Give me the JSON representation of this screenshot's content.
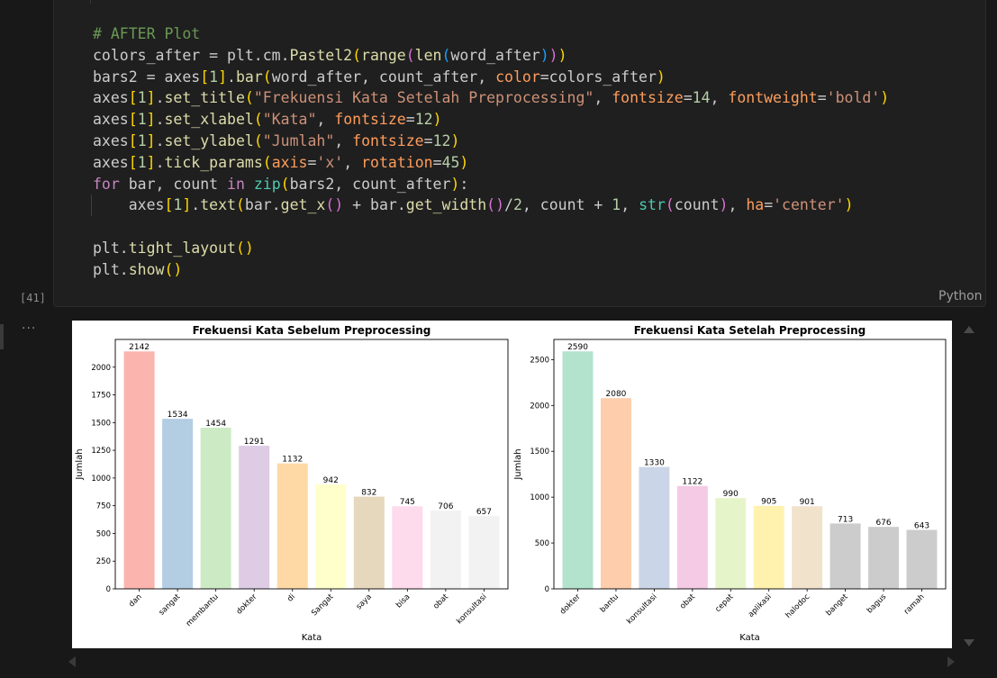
{
  "cell": {
    "code_lines": [
      [
        [
          "t-com",
          "# AFTER Plot"
        ]
      ],
      [
        [
          "t-def",
          "colors_after = plt.cm."
        ],
        [
          "t-fn",
          "Pastel2"
        ],
        [
          "t-b1",
          "("
        ],
        [
          "t-fn",
          "range"
        ],
        [
          "t-b2",
          "("
        ],
        [
          "t-fn",
          "len"
        ],
        [
          "t-b3",
          "("
        ],
        [
          "t-def",
          "word_after"
        ],
        [
          "t-b3",
          ")"
        ],
        [
          "t-b2",
          ")"
        ],
        [
          "t-b1",
          ")"
        ]
      ],
      [
        [
          "t-def",
          "bars2 = axes"
        ],
        [
          "t-b1",
          "["
        ],
        [
          "t-num",
          "1"
        ],
        [
          "t-b1",
          "]"
        ],
        [
          "t-def",
          "."
        ],
        [
          "t-fn",
          "bar"
        ],
        [
          "t-b1",
          "("
        ],
        [
          "t-def",
          "word_after, count_after, "
        ],
        [
          "t-kwa",
          "color"
        ],
        [
          "t-def",
          "=colors_after"
        ],
        [
          "t-b1",
          ")"
        ]
      ],
      [
        [
          "t-def",
          "axes"
        ],
        [
          "t-b1",
          "["
        ],
        [
          "t-num",
          "1"
        ],
        [
          "t-b1",
          "]"
        ],
        [
          "t-def",
          "."
        ],
        [
          "t-fn",
          "set_title"
        ],
        [
          "t-b1",
          "("
        ],
        [
          "t-str",
          "\"Frekuensi Kata Setelah Preprocessing\""
        ],
        [
          "t-def",
          ", "
        ],
        [
          "t-kwa",
          "fontsize"
        ],
        [
          "t-def",
          "="
        ],
        [
          "t-num",
          "14"
        ],
        [
          "t-def",
          ", "
        ],
        [
          "t-kwa",
          "fontweight"
        ],
        [
          "t-def",
          "="
        ],
        [
          "t-str",
          "'bold'"
        ],
        [
          "t-b1",
          ")"
        ]
      ],
      [
        [
          "t-def",
          "axes"
        ],
        [
          "t-b1",
          "["
        ],
        [
          "t-num",
          "1"
        ],
        [
          "t-b1",
          "]"
        ],
        [
          "t-def",
          "."
        ],
        [
          "t-fn",
          "set_xlabel"
        ],
        [
          "t-b1",
          "("
        ],
        [
          "t-str",
          "\"Kata\""
        ],
        [
          "t-def",
          ", "
        ],
        [
          "t-kwa",
          "fontsize"
        ],
        [
          "t-def",
          "="
        ],
        [
          "t-num",
          "12"
        ],
        [
          "t-b1",
          ")"
        ]
      ],
      [
        [
          "t-def",
          "axes"
        ],
        [
          "t-b1",
          "["
        ],
        [
          "t-num",
          "1"
        ],
        [
          "t-b1",
          "]"
        ],
        [
          "t-def",
          "."
        ],
        [
          "t-fn",
          "set_ylabel"
        ],
        [
          "t-b1",
          "("
        ],
        [
          "t-str",
          "\"Jumlah\""
        ],
        [
          "t-def",
          ", "
        ],
        [
          "t-kwa",
          "fontsize"
        ],
        [
          "t-def",
          "="
        ],
        [
          "t-num",
          "12"
        ],
        [
          "t-b1",
          ")"
        ]
      ],
      [
        [
          "t-def",
          "axes"
        ],
        [
          "t-b1",
          "["
        ],
        [
          "t-num",
          "1"
        ],
        [
          "t-b1",
          "]"
        ],
        [
          "t-def",
          "."
        ],
        [
          "t-fn",
          "tick_params"
        ],
        [
          "t-b1",
          "("
        ],
        [
          "t-kwa",
          "axis"
        ],
        [
          "t-def",
          "="
        ],
        [
          "t-str",
          "'x'"
        ],
        [
          "t-def",
          ", "
        ],
        [
          "t-kwa",
          "rotation"
        ],
        [
          "t-def",
          "="
        ],
        [
          "t-num",
          "45"
        ],
        [
          "t-b1",
          ")"
        ]
      ],
      [
        [
          "t-kw",
          "for"
        ],
        [
          "t-def",
          " bar, count "
        ],
        [
          "t-kw",
          "in"
        ],
        [
          "t-def",
          " "
        ],
        [
          "t-par",
          "zip"
        ],
        [
          "t-b1",
          "("
        ],
        [
          "t-def",
          "bars2, count_after"
        ],
        [
          "t-b1",
          ")"
        ],
        [
          "t-def",
          ":"
        ]
      ],
      [
        [
          "t-def",
          "    axes"
        ],
        [
          "t-b1",
          "["
        ],
        [
          "t-num",
          "1"
        ],
        [
          "t-b1",
          "]"
        ],
        [
          "t-def",
          "."
        ],
        [
          "t-fn",
          "text"
        ],
        [
          "t-b1",
          "("
        ],
        [
          "t-def",
          "bar."
        ],
        [
          "t-fn",
          "get_x"
        ],
        [
          "t-b2",
          "()"
        ],
        [
          "t-def",
          " + bar."
        ],
        [
          "t-fn",
          "get_width"
        ],
        [
          "t-b2",
          "()"
        ],
        [
          "t-def",
          "/"
        ],
        [
          "t-num",
          "2"
        ],
        [
          "t-def",
          ", count + "
        ],
        [
          "t-num",
          "1"
        ],
        [
          "t-def",
          ", "
        ],
        [
          "t-par",
          "str"
        ],
        [
          "t-b2",
          "("
        ],
        [
          "t-def",
          "count"
        ],
        [
          "t-b2",
          ")"
        ],
        [
          "t-def",
          ", "
        ],
        [
          "t-kwa",
          "ha"
        ],
        [
          "t-def",
          "="
        ],
        [
          "t-str",
          "'center'"
        ],
        [
          "t-b1",
          ")"
        ]
      ],
      [],
      [
        [
          "t-def",
          "plt."
        ],
        [
          "t-fn",
          "tight_layout"
        ],
        [
          "t-b1",
          "()"
        ]
      ],
      [
        [
          "t-def",
          "plt."
        ],
        [
          "t-fn",
          "show"
        ],
        [
          "t-b1",
          "()"
        ]
      ]
    ],
    "execution_count": "[41]",
    "language": "Python",
    "output_menu": "···"
  },
  "chart_data": [
    {
      "type": "bar",
      "title": "Frekuensi Kata Sebelum Preprocessing",
      "xlabel": "Kata",
      "ylabel": "Jumlah",
      "categories": [
        "dan",
        "sangat",
        "membantu",
        "dokter",
        "di",
        "Sangat",
        "saya",
        "bisa",
        "obat",
        "konsultasi"
      ],
      "values": [
        2142,
        1534,
        1454,
        1291,
        1132,
        942,
        832,
        745,
        706,
        657
      ],
      "colors": [
        "#fbb4ae",
        "#b3cde3",
        "#ccebc5",
        "#decbe4",
        "#fed9a6",
        "#ffffcc",
        "#e5d8bd",
        "#fddaec",
        "#f2f2f2",
        "#f2f2f2"
      ],
      "ylim": [
        0,
        2250
      ],
      "yticks": [
        0,
        250,
        500,
        750,
        1000,
        1250,
        1500,
        1750,
        2000
      ]
    },
    {
      "type": "bar",
      "title": "Frekuensi Kata Setelah Preprocessing",
      "xlabel": "Kata",
      "ylabel": "Jumlah",
      "categories": [
        "dokter",
        "bantu",
        "konsultasi",
        "obat",
        "cepat",
        "aplikasi",
        "halodoc",
        "banget",
        "bagus",
        "ramah"
      ],
      "values": [
        2590,
        2080,
        1330,
        1122,
        990,
        905,
        901,
        713,
        676,
        643
      ],
      "colors": [
        "#b3e2cd",
        "#fdcdac",
        "#cbd5e8",
        "#f4cae4",
        "#e6f5c9",
        "#fff2ae",
        "#f1e2cc",
        "#cccccc",
        "#cccccc",
        "#cccccc"
      ],
      "ylim": [
        0,
        2720
      ],
      "yticks": [
        0,
        500,
        1000,
        1500,
        2000,
        2500
      ]
    }
  ]
}
